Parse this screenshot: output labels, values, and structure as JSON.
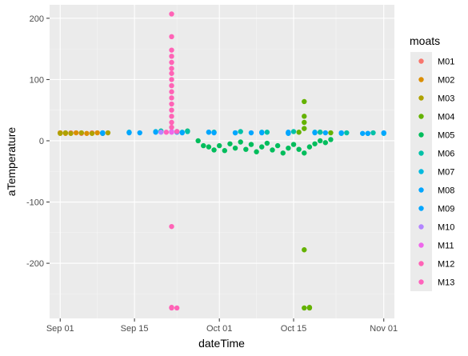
{
  "chart_data": {
    "type": "scatter",
    "xlabel": "dateTime",
    "ylabel": "aTemperature",
    "x_type": "date",
    "xlim": [
      "2024-08-30",
      "2024-11-03"
    ],
    "ylim": [
      -290,
      222
    ],
    "x_ticks": [
      {
        "date": "2024-09-01",
        "label": "Sep 01"
      },
      {
        "date": "2024-09-15",
        "label": "Sep 15"
      },
      {
        "date": "2024-10-01",
        "label": "Oct 01"
      },
      {
        "date": "2024-10-15",
        "label": "Oct 15"
      },
      {
        "date": "2024-11-01",
        "label": "Nov 01"
      }
    ],
    "x_minor_ticks": [
      "2024-09-08",
      "2024-09-23",
      "2024-10-08",
      "2024-10-23"
    ],
    "y_ticks": [
      200,
      100,
      0,
      -100,
      -200
    ],
    "y_minor_ticks": [
      150,
      50,
      -50,
      -150,
      -250
    ],
    "grid": true,
    "legend": {
      "title": "moats",
      "placement": "right"
    },
    "series": [
      {
        "name": "M01",
        "color": "#F8766D",
        "points": [
          [
            "2024-09-01",
            13
          ],
          [
            "2024-09-03",
            13
          ],
          [
            "2024-09-05",
            12
          ],
          [
            "2024-09-07",
            13
          ],
          [
            "2024-09-09",
            12
          ]
        ]
      },
      {
        "name": "M02",
        "color": "#DB8E00",
        "points": [
          [
            "2024-09-01",
            13
          ],
          [
            "2024-09-02",
            12
          ],
          [
            "2024-09-04",
            13
          ],
          [
            "2024-09-06",
            12
          ],
          [
            "2024-09-08",
            13
          ]
        ]
      },
      {
        "name": "M03",
        "color": "#AEA200",
        "points": [
          [
            "2024-09-01",
            12
          ],
          [
            "2024-09-02",
            13
          ],
          [
            "2024-09-03",
            12
          ],
          [
            "2024-09-05",
            13
          ],
          [
            "2024-09-07",
            12
          ],
          [
            "2024-09-09",
            12
          ],
          [
            "2024-09-10",
            13
          ]
        ]
      },
      {
        "name": "M04",
        "color": "#64B200",
        "points": [
          [
            "2024-10-16",
            14
          ],
          [
            "2024-10-17",
            64
          ],
          [
            "2024-10-17",
            40
          ],
          [
            "2024-10-17",
            30
          ],
          [
            "2024-10-17",
            20
          ],
          [
            "2024-10-17",
            -178
          ],
          [
            "2024-10-17",
            -273
          ],
          [
            "2024-10-18",
            -273
          ],
          [
            "2024-10-18",
            -272
          ],
          [
            "2024-10-20",
            14
          ],
          [
            "2024-10-22",
            13
          ]
        ]
      },
      {
        "name": "M05",
        "color": "#00BD5C",
        "points": [
          [
            "2024-09-23",
            15
          ],
          [
            "2024-09-25",
            16
          ],
          [
            "2024-09-27",
            0
          ],
          [
            "2024-09-28",
            -8
          ],
          [
            "2024-09-29",
            -10
          ],
          [
            "2024-09-30",
            -15
          ],
          [
            "2024-10-01",
            -8
          ],
          [
            "2024-10-02",
            -16
          ],
          [
            "2024-10-03",
            -5
          ],
          [
            "2024-10-04",
            -12
          ],
          [
            "2024-10-05",
            -2
          ],
          [
            "2024-10-06",
            -14
          ],
          [
            "2024-10-07",
            -6
          ],
          [
            "2024-10-08",
            -18
          ],
          [
            "2024-10-09",
            -10
          ],
          [
            "2024-10-10",
            -4
          ],
          [
            "2024-10-11",
            -15
          ],
          [
            "2024-10-12",
            -8
          ],
          [
            "2024-10-13",
            -20
          ],
          [
            "2024-10-14",
            -12
          ],
          [
            "2024-10-15",
            -6
          ],
          [
            "2024-10-16",
            -14
          ],
          [
            "2024-10-17",
            -20
          ],
          [
            "2024-10-18",
            -10
          ],
          [
            "2024-10-19",
            -5
          ],
          [
            "2024-10-20",
            0
          ],
          [
            "2024-10-21",
            -3
          ],
          [
            "2024-10-22",
            2
          ]
        ]
      },
      {
        "name": "M06",
        "color": "#00C1A7",
        "points": [
          [
            "2024-09-20",
            16
          ],
          [
            "2024-09-25",
            15
          ],
          [
            "2024-09-30",
            14
          ],
          [
            "2024-10-05",
            15
          ],
          [
            "2024-10-10",
            14
          ],
          [
            "2024-10-15",
            15
          ],
          [
            "2024-10-20",
            14
          ],
          [
            "2024-10-25",
            13
          ],
          [
            "2024-10-30",
            13
          ]
        ]
      },
      {
        "name": "M07",
        "color": "#00BADE",
        "points": [
          [
            "2024-09-09",
            13
          ],
          [
            "2024-09-14",
            14
          ],
          [
            "2024-09-19",
            15
          ],
          [
            "2024-09-24",
            14
          ],
          [
            "2024-09-29",
            14
          ],
          [
            "2024-10-04",
            13
          ],
          [
            "2024-10-09",
            14
          ],
          [
            "2024-10-14",
            13
          ],
          [
            "2024-10-19",
            14
          ],
          [
            "2024-10-24",
            12
          ],
          [
            "2024-10-29",
            12
          ],
          [
            "2024-11-01",
            12
          ]
        ]
      },
      {
        "name": "M08",
        "color": "#00A6FF",
        "points": [
          [
            "2024-09-09",
            12
          ],
          [
            "2024-09-14",
            13
          ],
          [
            "2024-09-19",
            14
          ],
          [
            "2024-09-24",
            13
          ],
          [
            "2024-09-29",
            14
          ],
          [
            "2024-10-04",
            13
          ],
          [
            "2024-10-09",
            13
          ],
          [
            "2024-10-14",
            14
          ],
          [
            "2024-10-19",
            13
          ],
          [
            "2024-10-24",
            13
          ],
          [
            "2024-10-29",
            12
          ],
          [
            "2024-11-01",
            13
          ]
        ]
      },
      {
        "name": "M09",
        "color": "#00A6FF",
        "points": [
          [
            "2024-09-09",
            13
          ],
          [
            "2024-09-16",
            13
          ],
          [
            "2024-09-23",
            14
          ],
          [
            "2024-09-30",
            13
          ],
          [
            "2024-10-07",
            13
          ],
          [
            "2024-10-14",
            12
          ],
          [
            "2024-10-21",
            13
          ],
          [
            "2024-10-28",
            12
          ]
        ]
      },
      {
        "name": "M10",
        "color": "#B385FF",
        "points": [
          [
            "2024-09-20",
            14
          ],
          [
            "2024-09-22",
            15
          ]
        ]
      },
      {
        "name": "M11",
        "color": "#EF67EB",
        "points": [
          [
            "2024-09-22",
            14
          ],
          [
            "2024-09-23",
            15
          ]
        ]
      },
      {
        "name": "M12",
        "color": "#FF63B6",
        "points": [
          [
            "2024-09-22",
            207
          ],
          [
            "2024-09-22",
            170
          ],
          [
            "2024-09-22",
            148
          ],
          [
            "2024-09-22",
            138
          ],
          [
            "2024-09-22",
            128
          ],
          [
            "2024-09-22",
            118
          ],
          [
            "2024-09-22",
            110
          ],
          [
            "2024-09-22",
            100
          ],
          [
            "2024-09-22",
            90
          ],
          [
            "2024-09-22",
            80
          ],
          [
            "2024-09-22",
            70
          ],
          [
            "2024-09-22",
            60
          ],
          [
            "2024-09-22",
            50
          ],
          [
            "2024-09-22",
            40
          ],
          [
            "2024-09-22",
            30
          ],
          [
            "2024-09-22",
            22
          ],
          [
            "2024-09-22",
            -140
          ],
          [
            "2024-09-22",
            -272
          ],
          [
            "2024-09-22",
            -273
          ],
          [
            "2024-09-23",
            -273
          ]
        ]
      },
      {
        "name": "M13",
        "color": "#FF62BC",
        "points": [
          [
            "2024-09-21",
            14
          ],
          [
            "2024-09-23",
            15
          ]
        ]
      }
    ]
  }
}
